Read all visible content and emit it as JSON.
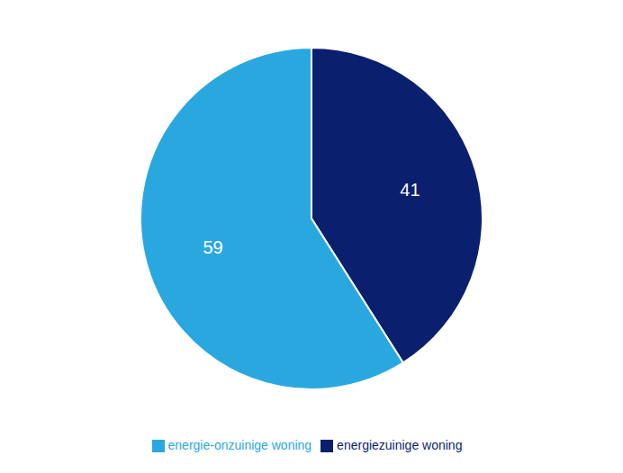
{
  "chart_data": {
    "type": "pie",
    "categories": [
      "energiezuinige woning",
      "energie-onzuinige woning"
    ],
    "values": [
      41,
      59
    ],
    "colors": [
      "#0a1f6e",
      "#29a8e0"
    ],
    "data_labels": true,
    "legend": "bottom"
  }
}
